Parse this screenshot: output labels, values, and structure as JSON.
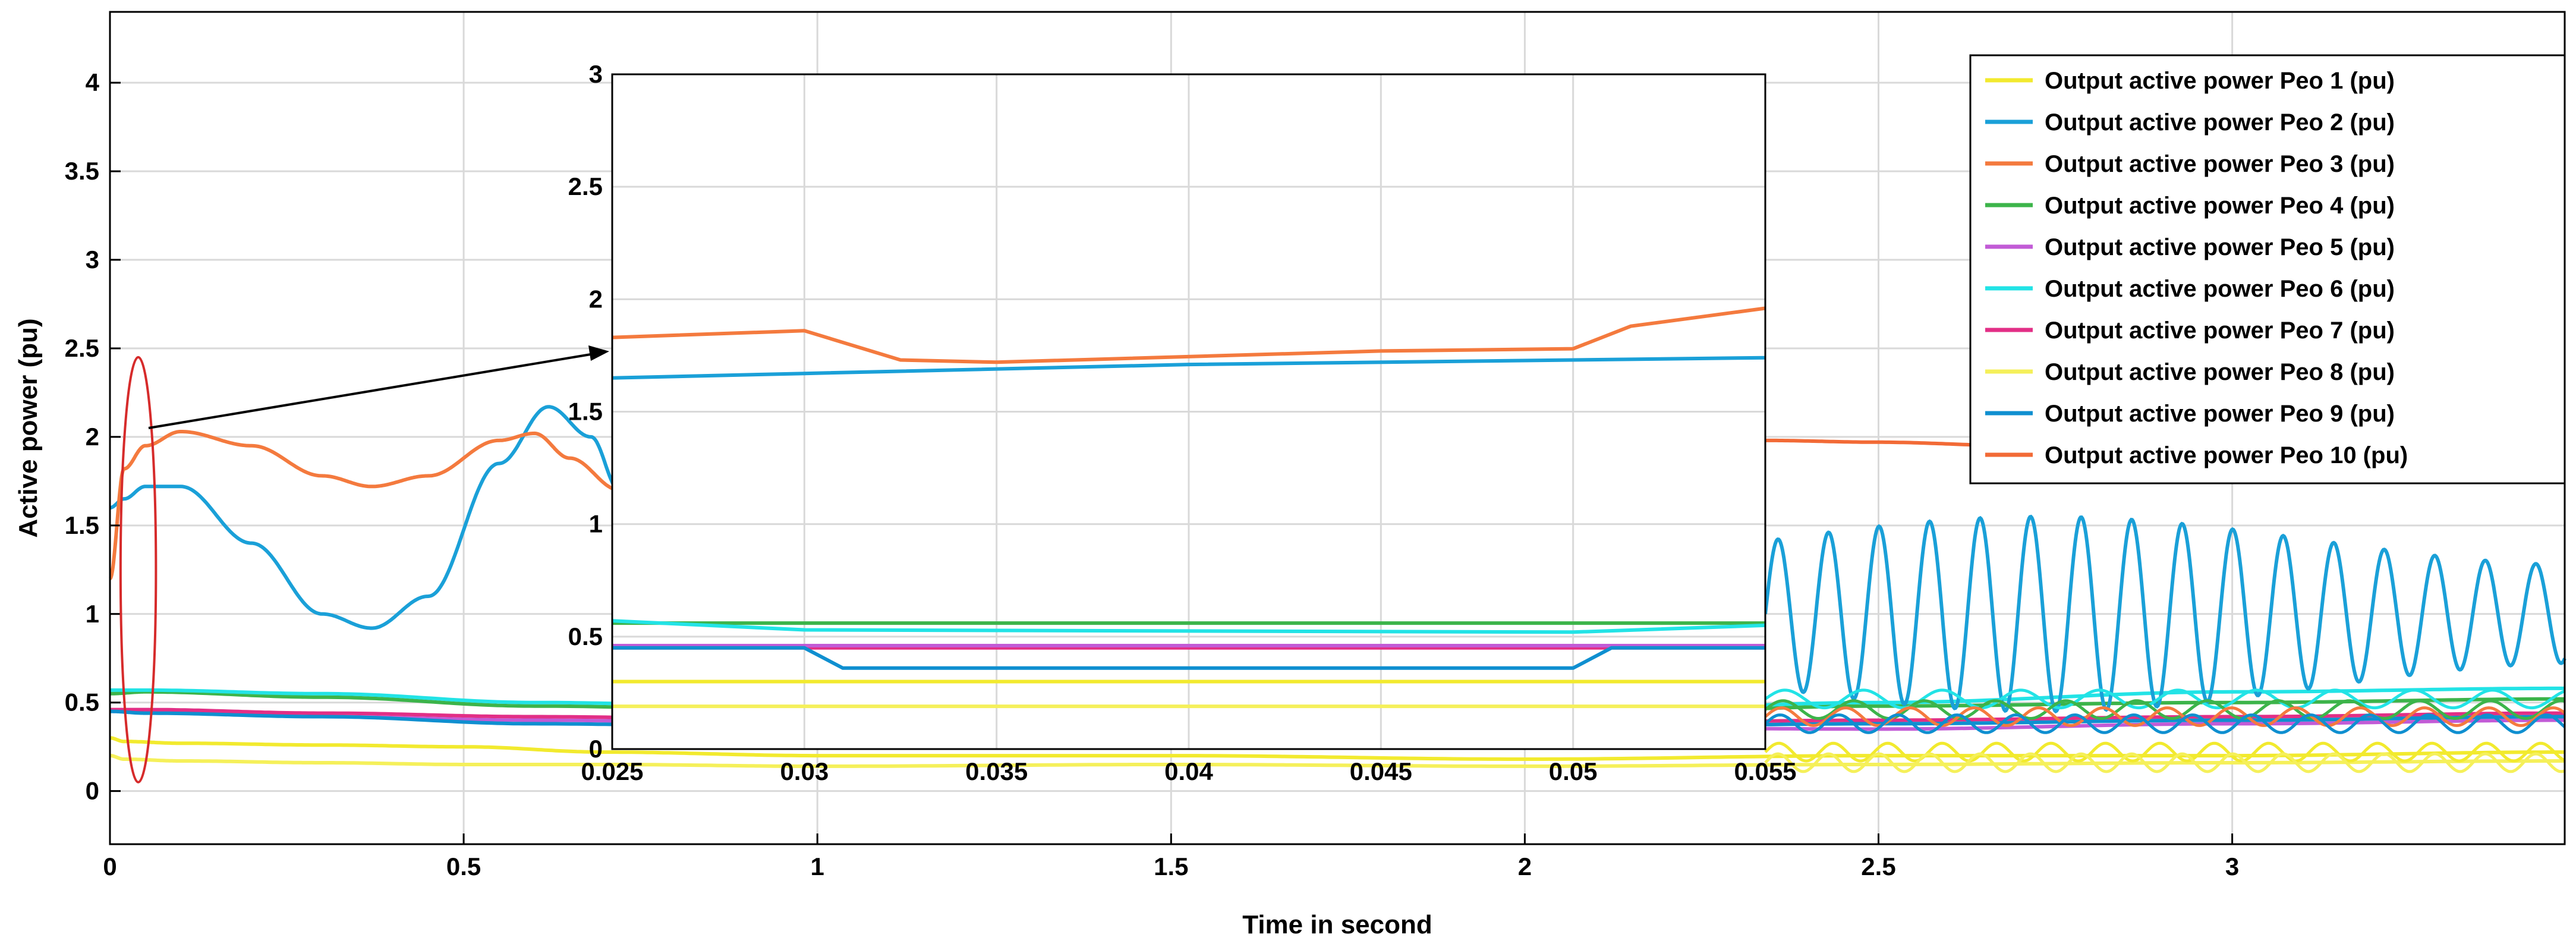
{
  "chart_data": {
    "type": "line",
    "xlabel": "Time in second",
    "ylabel": "Active power (pu)",
    "xlim": [
      0,
      3.47
    ],
    "ylim": [
      -0.3,
      4.4
    ],
    "xticks": [
      0,
      0.5,
      1,
      1.5,
      2,
      2.5,
      3
    ],
    "xtick_labels": [
      "0",
      "0.5",
      "1",
      "1.5",
      "2",
      "2.5",
      "3"
    ],
    "yticks": [
      0,
      0.5,
      1,
      1.5,
      2,
      2.5,
      3,
      3.5,
      4
    ],
    "ytick_labels": [
      "0",
      "0.5",
      "1",
      "1.5",
      "2",
      "2.5",
      "3",
      "3.5",
      "4"
    ],
    "grid": true,
    "legend_position": "top-right",
    "series": [
      {
        "name": "Output active power   Peo 1 (pu)",
        "color": "#f2ea2e",
        "x": [
          0,
          0.02,
          0.1,
          0.3,
          0.5,
          0.7,
          1.0,
          1.5,
          2.0,
          2.5,
          3.0,
          3.47
        ],
        "y": [
          0.3,
          0.28,
          0.27,
          0.26,
          0.25,
          0.22,
          0.2,
          0.2,
          0.18,
          0.2,
          0.2,
          0.22
        ]
      },
      {
        "name": "Output active power   Peo 2 (pu)",
        "color": "#1aa0d8",
        "x": [
          0,
          0.02,
          0.05,
          0.1,
          0.2,
          0.3,
          0.37,
          0.45,
          0.55,
          0.62,
          0.68,
          0.72
        ],
        "y": [
          1.6,
          1.65,
          1.72,
          1.72,
          1.4,
          1.0,
          0.92,
          1.1,
          1.85,
          2.17,
          2.0,
          1.7
        ]
      },
      {
        "name": "Output active power   Peo 3 (pu)",
        "color": "#f47a3e",
        "x": [
          0,
          0.02,
          0.05,
          0.1,
          0.2,
          0.3,
          0.37,
          0.45,
          0.55,
          0.6,
          0.65,
          0.72
        ],
        "y": [
          1.2,
          1.82,
          1.95,
          2.03,
          1.95,
          1.78,
          1.72,
          1.78,
          1.98,
          2.02,
          1.88,
          1.7
        ]
      },
      {
        "name": "Output active power   Peo 4 (pu)",
        "color": "#3cb44a",
        "x": [
          0,
          0.05,
          0.3,
          0.6,
          1.0,
          1.5,
          2.0,
          2.5,
          3.0,
          3.47
        ],
        "y": [
          0.55,
          0.56,
          0.53,
          0.48,
          0.45,
          0.43,
          0.42,
          0.48,
          0.5,
          0.52
        ]
      },
      {
        "name": "Output active power   Peo 5 (pu)",
        "color": "#c25bd6",
        "x": [
          0,
          0.05,
          0.3,
          0.6,
          1.0,
          1.5,
          2.0,
          2.5,
          3.0,
          3.47
        ],
        "y": [
          0.45,
          0.45,
          0.42,
          0.4,
          0.38,
          0.36,
          0.36,
          0.35,
          0.38,
          0.4
        ]
      },
      {
        "name": "Output active power   Peo 6 (pu)",
        "color": "#22e3e6",
        "x": [
          0,
          0.05,
          0.3,
          0.6,
          1.0,
          1.5,
          2.0,
          2.5,
          3.0,
          3.47
        ],
        "y": [
          0.57,
          0.57,
          0.55,
          0.5,
          0.47,
          0.45,
          0.44,
          0.5,
          0.56,
          0.58
        ]
      },
      {
        "name": "Output active power   Peo 7 (pu)",
        "color": "#e22f86",
        "x": [
          0,
          0.05,
          0.3,
          0.6,
          1.0,
          1.5,
          2.0,
          2.5,
          3.0,
          3.47
        ],
        "y": [
          0.46,
          0.46,
          0.44,
          0.42,
          0.4,
          0.39,
          0.38,
          0.4,
          0.42,
          0.44
        ]
      },
      {
        "name": "Output active power   Peo 8 (pu)",
        "color": "#f5f05a",
        "x": [
          0,
          0.02,
          0.1,
          0.3,
          0.5,
          0.7,
          1.0,
          1.5,
          2.0,
          2.5,
          3.0,
          3.47
        ],
        "y": [
          0.2,
          0.18,
          0.17,
          0.16,
          0.15,
          0.15,
          0.14,
          0.15,
          0.14,
          0.15,
          0.16,
          0.17
        ]
      },
      {
        "name": "Output active power   Peo 9 (pu)",
        "color": "#0f8fd0",
        "x": [
          0,
          0.05,
          0.3,
          0.6,
          1.0,
          1.5,
          2.0,
          2.5,
          3.0,
          3.47
        ],
        "y": [
          0.45,
          0.44,
          0.42,
          0.38,
          0.36,
          0.34,
          0.36,
          0.38,
          0.4,
          0.42
        ]
      },
      {
        "name": "Output active power   Peo 10 (pu)",
        "color": "#f26a36",
        "x": [
          2.34,
          2.5,
          2.7,
          3.0,
          3.2,
          3.47
        ],
        "y": [
          1.98,
          1.97,
          1.95,
          1.95,
          1.96,
          1.98
        ]
      }
    ],
    "oscillation": {
      "x_start": 2.34,
      "x_end": 3.47,
      "center": 1.0,
      "amplitude": 0.55,
      "color": "#1aa0d8"
    },
    "callout": {
      "x": 0.04,
      "y": 1.25,
      "rx": 0.025,
      "ry": 1.2
    },
    "inset": {
      "xlim": [
        0.025,
        0.055
      ],
      "ylim": [
        0,
        3
      ],
      "xticks": [
        0.025,
        0.03,
        0.035,
        0.04,
        0.045,
        0.05,
        0.055
      ],
      "xtick_labels": [
        "0.025",
        "0.03",
        "0.035",
        "0.04",
        "0.045",
        "0.05",
        "0.055"
      ],
      "yticks": [
        0,
        0.5,
        1,
        1.5,
        2,
        2.5,
        3
      ],
      "ytick_labels": [
        "0",
        "0.5",
        "1",
        "1.5",
        "2",
        "2.5",
        "3"
      ],
      "series": [
        {
          "color": "#f47a3e",
          "x": [
            0.025,
            0.03,
            0.0325,
            0.035,
            0.045,
            0.05,
            0.0515,
            0.055
          ],
          "y": [
            1.83,
            1.86,
            1.73,
            1.72,
            1.77,
            1.78,
            1.88,
            1.96
          ]
        },
        {
          "color": "#1aa0d8",
          "x": [
            0.025,
            0.03,
            0.04,
            0.05,
            0.055
          ],
          "y": [
            1.65,
            1.67,
            1.71,
            1.73,
            1.74
          ]
        },
        {
          "color": "#3cb44a",
          "x": [
            0.025,
            0.055
          ],
          "y": [
            0.56,
            0.56
          ]
        },
        {
          "color": "#22e3e6",
          "x": [
            0.025,
            0.03,
            0.05,
            0.055
          ],
          "y": [
            0.57,
            0.53,
            0.52,
            0.55
          ]
        },
        {
          "color": "#e22f86",
          "x": [
            0.025,
            0.055
          ],
          "y": [
            0.45,
            0.45
          ]
        },
        {
          "color": "#c25bd6",
          "x": [
            0.025,
            0.055
          ],
          "y": [
            0.46,
            0.46
          ]
        },
        {
          "color": "#0f8fd0",
          "x": [
            0.025,
            0.03,
            0.031,
            0.05,
            0.051,
            0.055
          ],
          "y": [
            0.45,
            0.45,
            0.36,
            0.36,
            0.45,
            0.45
          ]
        },
        {
          "color": "#f2ea2e",
          "x": [
            0.025,
            0.055
          ],
          "y": [
            0.3,
            0.3
          ]
        },
        {
          "color": "#f5f05a",
          "x": [
            0.025,
            0.055
          ],
          "y": [
            0.19,
            0.19
          ]
        }
      ]
    }
  }
}
